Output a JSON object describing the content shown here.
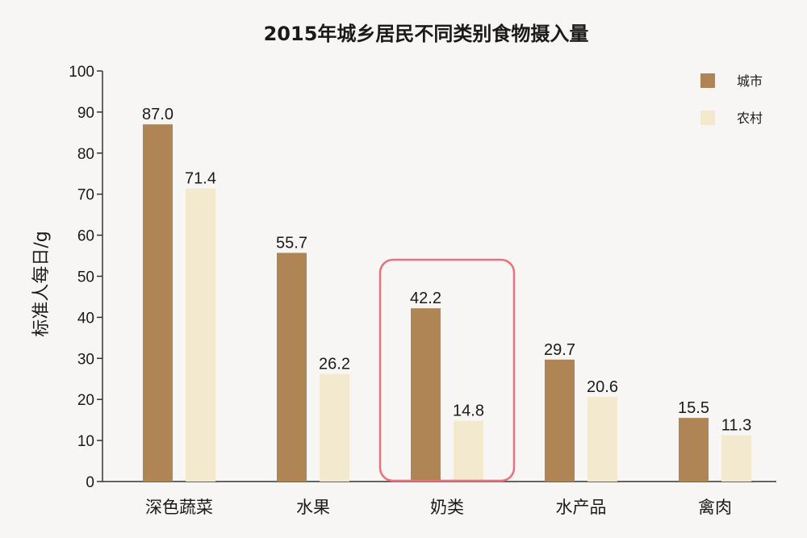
{
  "chart_data": {
    "type": "bar",
    "title": "2015年城乡居民不同类别食物摄入量",
    "xlabel": "",
    "ylabel": "标准人每日/g",
    "ylim": [
      0,
      100
    ],
    "yticks": [
      0,
      10,
      20,
      30,
      40,
      50,
      60,
      70,
      80,
      90,
      100
    ],
    "grid": false,
    "legend_position": "top-right",
    "categories": [
      "深色蔬菜",
      "水果",
      "奶类",
      "水产品",
      "禽肉"
    ],
    "series": [
      {
        "name": "城市",
        "color": "#b08556",
        "values": [
          87.0,
          55.7,
          42.2,
          29.7,
          15.5
        ]
      },
      {
        "name": "农村",
        "color": "#f2e9cf",
        "values": [
          71.4,
          26.2,
          14.8,
          20.6,
          11.3
        ]
      }
    ],
    "highlight": {
      "category": "奶类",
      "color": "#e8717a"
    }
  }
}
